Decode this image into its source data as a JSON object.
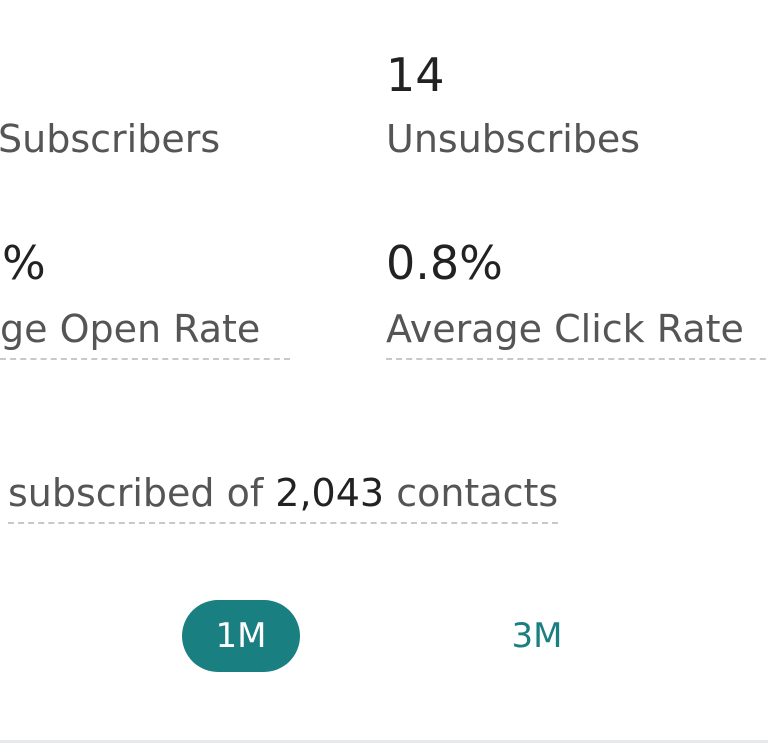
{
  "stats": [
    {
      "label": "Subscribers"
    },
    {
      "value": "14",
      "label": "Unsubscribes"
    },
    {
      "value": "%",
      "label": "ge Open Rate"
    },
    {
      "value": "0.8%",
      "label": "Average Click Rate"
    }
  ],
  "summary": {
    "text": "subscribed of",
    "count": "2,043",
    "suffix": "contacts"
  },
  "periods": [
    {
      "label": "1M",
      "selected": true
    },
    {
      "label": "3M",
      "selected": false
    }
  ]
}
